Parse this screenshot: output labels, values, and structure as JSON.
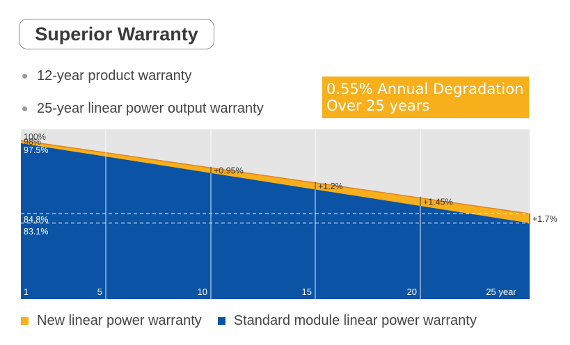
{
  "header": {
    "title": "Superior Warranty"
  },
  "bullets": [
    "12-year product warranty",
    "25-year linear power output warranty"
  ],
  "callout": {
    "line1": "0.55% Annual Degradation",
    "line2": "Over 25 years"
  },
  "colors": {
    "new": "#F7AF1C",
    "standard": "#0A53A5",
    "background": "#E5E5E5",
    "line": "#E4831F"
  },
  "chart_data": {
    "type": "area",
    "x": [
      1,
      5,
      10,
      15,
      20,
      25
    ],
    "x_tick_labels": [
      "1",
      "5",
      "10",
      "15",
      "20",
      "25 year"
    ],
    "xlim": [
      1,
      25.5
    ],
    "ylim": [
      75,
      100
    ],
    "y_labels": [
      {
        "value": 100,
        "label": "100%"
      },
      {
        "value": 98,
        "label": "98%"
      },
      {
        "value": 97.5,
        "label": "97.5%"
      },
      {
        "value": 84.8,
        "label": "84.8%"
      },
      {
        "value": 83.1,
        "label": "83.1%"
      }
    ],
    "reference_lines": [
      84.8,
      83.1
    ],
    "series": [
      {
        "name": "New linear power warranty",
        "x": [
          1,
          25.5
        ],
        "values": [
          98,
          84.8
        ]
      },
      {
        "name": "Standard module linear power warranty",
        "x": [
          1,
          25.5
        ],
        "values": [
          97.5,
          83.1
        ]
      }
    ],
    "annotations": [
      {
        "x": 10,
        "label": "+0.95%"
      },
      {
        "x": 15,
        "label": "+1.2%"
      },
      {
        "x": 20,
        "label": "+1.45%"
      },
      {
        "x": 25.5,
        "label": "+1.7%"
      }
    ],
    "grid": true,
    "legend": "bottom"
  }
}
